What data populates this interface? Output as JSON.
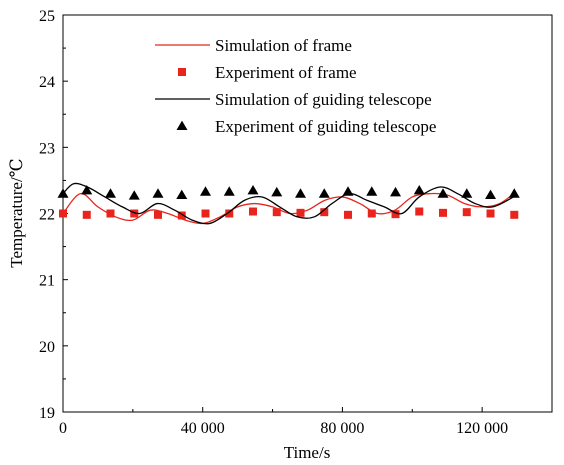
{
  "chart_data": {
    "type": "line",
    "xlabel": "Time/s",
    "ylabel": "Temperature/℃",
    "xlim": [
      0,
      140000
    ],
    "ylim": [
      19,
      25
    ],
    "xticks": [
      0,
      40000,
      80000,
      120000
    ],
    "xtick_labels": [
      "0",
      "40 000",
      "80 000",
      "120 000"
    ],
    "yticks": [
      19,
      20,
      21,
      22,
      23,
      24,
      25
    ],
    "ytick_labels": [
      "19",
      "20",
      "21",
      "22",
      "23",
      "24",
      "25"
    ],
    "grid": false,
    "legend_position": "top",
    "series": [
      {
        "name": "Simulation of frame",
        "kind": "line",
        "color": "#e8241c",
        "x": [
          0,
          5000,
          10000,
          15000,
          20000,
          25000,
          30000,
          35000,
          40000,
          45000,
          50000,
          55000,
          60000,
          65000,
          70000,
          75000,
          80000,
          85000,
          90000,
          95000,
          100000,
          105000,
          110000,
          115000,
          120000,
          125000,
          129000
        ],
        "y": [
          22.0,
          22.3,
          22.1,
          21.95,
          21.9,
          22.05,
          22.0,
          21.9,
          21.85,
          21.95,
          22.1,
          22.15,
          22.1,
          22.0,
          22.05,
          22.2,
          22.25,
          22.15,
          22.0,
          22.05,
          22.25,
          22.3,
          22.28,
          22.15,
          22.1,
          22.15,
          22.3
        ]
      },
      {
        "name": "Experiment of frame",
        "kind": "marker",
        "marker": "square",
        "color": "#e8241c",
        "x": [
          0,
          6800,
          13600,
          20400,
          27200,
          34000,
          40800,
          47600,
          54400,
          61200,
          68000,
          74800,
          81600,
          88400,
          95200,
          102000,
          108800,
          115600,
          122400,
          129200
        ],
        "y": [
          22.0,
          21.98,
          22.0,
          22.0,
          21.98,
          21.97,
          22.0,
          22.0,
          22.03,
          22.02,
          22.01,
          22.02,
          21.98,
          22.0,
          21.99,
          22.03,
          22.01,
          22.02,
          22.0,
          21.98
        ]
      },
      {
        "name": "Simulation of guiding telescope",
        "kind": "line",
        "color": "#000000",
        "x": [
          0,
          3000,
          7000,
          12000,
          17000,
          22000,
          27000,
          32000,
          37000,
          42000,
          47000,
          52000,
          57000,
          62000,
          67000,
          72000,
          77000,
          82000,
          87000,
          92000,
          97000,
          102000,
          108000,
          113000,
          118000,
          123000,
          129000
        ],
        "y": [
          22.3,
          22.45,
          22.4,
          22.25,
          22.1,
          22.0,
          22.15,
          22.05,
          21.9,
          21.85,
          22.0,
          22.2,
          22.25,
          22.1,
          21.95,
          21.95,
          22.15,
          22.3,
          22.2,
          22.1,
          22.0,
          22.25,
          22.4,
          22.3,
          22.15,
          22.1,
          22.25
        ]
      },
      {
        "name": "Experiment of guiding telescope",
        "kind": "marker",
        "marker": "triangle",
        "color": "#000000",
        "x": [
          0,
          6800,
          13600,
          20400,
          27200,
          34000,
          40800,
          47600,
          54400,
          61200,
          68000,
          74800,
          81600,
          88400,
          95200,
          102000,
          108800,
          115600,
          122400,
          129200
        ],
        "y": [
          22.3,
          22.35,
          22.3,
          22.27,
          22.3,
          22.28,
          22.33,
          22.33,
          22.35,
          22.32,
          22.3,
          22.3,
          22.33,
          22.33,
          22.32,
          22.35,
          22.3,
          22.3,
          22.28,
          22.3
        ]
      }
    ]
  }
}
